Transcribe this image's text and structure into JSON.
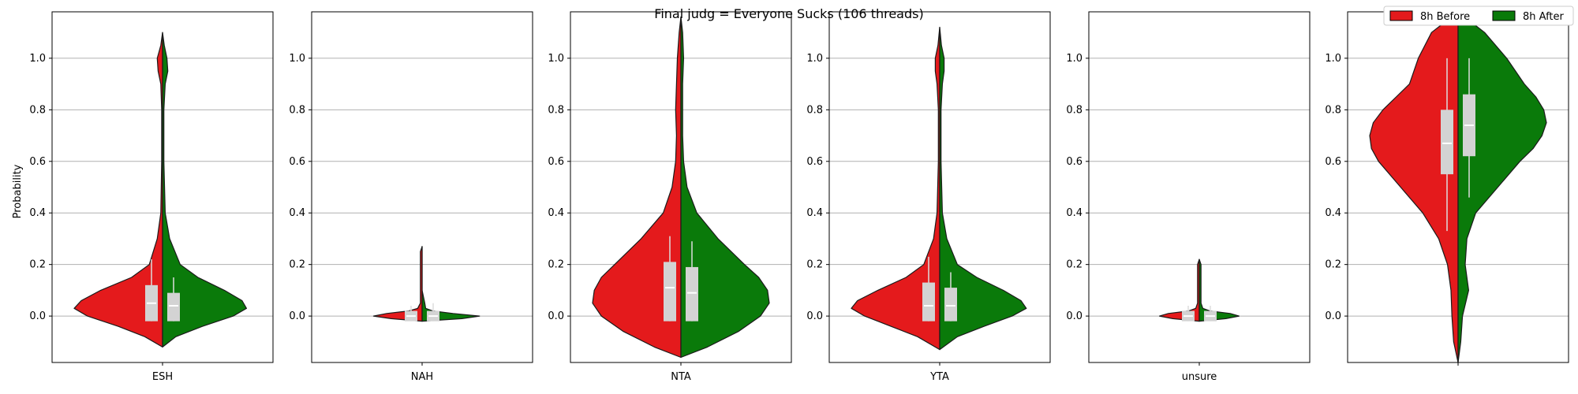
{
  "title": "Final judg = Everyone Sucks (106 threads)",
  "chart_data": {
    "type": "violin",
    "title": "Final judg = Everyone Sucks (106 threads)",
    "ylabel": "Probability",
    "ylim": [
      -0.18,
      1.18
    ],
    "yticks": [
      "0.0",
      "0.2",
      "0.4",
      "0.6",
      "0.8",
      "1.0"
    ],
    "grid": "horizontal",
    "legend": {
      "placement": "top-right",
      "entries": [
        {
          "name": "8h Before",
          "color": "#e41a1c"
        },
        {
          "name": "8h After",
          "color": "#0a7a0a"
        }
      ]
    },
    "panels": [
      {
        "category": "ESH",
        "density_y": [
          -0.12,
          -0.08,
          -0.04,
          0.0,
          0.03,
          0.06,
          0.1,
          0.15,
          0.2,
          0.3,
          0.4,
          0.6,
          0.8,
          0.9,
          0.95,
          1.0,
          1.05,
          1.1
        ],
        "before_width": [
          0.0,
          0.2,
          0.5,
          0.85,
          1.0,
          0.92,
          0.7,
          0.35,
          0.15,
          0.06,
          0.02,
          0.01,
          0.01,
          0.02,
          0.05,
          0.06,
          0.02,
          0.0
        ],
        "after_width": [
          0.0,
          0.15,
          0.45,
          0.8,
          0.95,
          0.9,
          0.7,
          0.4,
          0.2,
          0.08,
          0.03,
          0.015,
          0.015,
          0.03,
          0.06,
          0.05,
          0.02,
          0.0
        ],
        "before_box": {
          "q1": -0.02,
          "median": 0.05,
          "q3": 0.12,
          "whisker_low": -0.02,
          "whisker_high": 0.22
        },
        "after_box": {
          "q1": -0.02,
          "median": 0.04,
          "q3": 0.09,
          "whisker_low": -0.02,
          "whisker_high": 0.15
        }
      },
      {
        "category": "NAH",
        "density_y": [
          -0.02,
          -0.01,
          0.0,
          0.01,
          0.02,
          0.03,
          0.05,
          0.1,
          0.15,
          0.2,
          0.25,
          0.27
        ],
        "before_width": [
          0.0,
          0.35,
          0.55,
          0.4,
          0.15,
          0.05,
          0.02,
          0.02,
          0.02,
          0.02,
          0.02,
          0.0
        ],
        "after_width": [
          0.0,
          0.45,
          0.65,
          0.35,
          0.12,
          0.04,
          0.03,
          0.0,
          0.0,
          0.0,
          0.0,
          0.0
        ],
        "before_box": {
          "q1": -0.02,
          "median": 0.0,
          "q3": 0.02,
          "whisker_low": -0.02,
          "whisker_high": 0.04
        },
        "after_box": {
          "q1": -0.02,
          "median": 0.0,
          "q3": 0.02,
          "whisker_low": -0.02,
          "whisker_high": 0.05
        }
      },
      {
        "category": "NTA",
        "density_y": [
          -0.16,
          -0.12,
          -0.06,
          0.0,
          0.05,
          0.1,
          0.15,
          0.2,
          0.3,
          0.4,
          0.5,
          0.6,
          0.7,
          0.8,
          0.9,
          1.0,
          1.1,
          1.16
        ],
        "before_width": [
          0.0,
          0.3,
          0.65,
          0.9,
          1.0,
          0.98,
          0.9,
          0.75,
          0.45,
          0.2,
          0.1,
          0.06,
          0.05,
          0.06,
          0.05,
          0.04,
          0.02,
          0.0
        ],
        "after_width": [
          0.0,
          0.3,
          0.65,
          0.9,
          1.0,
          0.98,
          0.88,
          0.72,
          0.42,
          0.18,
          0.07,
          0.03,
          0.02,
          0.02,
          0.02,
          0.03,
          0.02,
          0.0
        ],
        "before_box": {
          "q1": -0.02,
          "median": 0.11,
          "q3": 0.21,
          "whisker_low": -0.02,
          "whisker_high": 0.31
        },
        "after_box": {
          "q1": -0.02,
          "median": 0.09,
          "q3": 0.19,
          "whisker_low": -0.02,
          "whisker_high": 0.29
        }
      },
      {
        "category": "YTA",
        "density_y": [
          -0.13,
          -0.08,
          -0.04,
          0.0,
          0.03,
          0.06,
          0.1,
          0.15,
          0.2,
          0.3,
          0.4,
          0.6,
          0.8,
          0.9,
          0.95,
          1.0,
          1.05,
          1.12
        ],
        "before_width": [
          0.0,
          0.25,
          0.55,
          0.85,
          1.0,
          0.93,
          0.7,
          0.38,
          0.18,
          0.07,
          0.03,
          0.015,
          0.015,
          0.03,
          0.05,
          0.05,
          0.02,
          0.0
        ],
        "after_width": [
          0.0,
          0.2,
          0.5,
          0.82,
          0.98,
          0.92,
          0.72,
          0.42,
          0.2,
          0.08,
          0.03,
          0.015,
          0.015,
          0.03,
          0.05,
          0.05,
          0.02,
          0.0
        ],
        "before_box": {
          "q1": -0.02,
          "median": 0.04,
          "q3": 0.13,
          "whisker_low": -0.02,
          "whisker_high": 0.23
        },
        "after_box": {
          "q1": -0.02,
          "median": 0.04,
          "q3": 0.11,
          "whisker_low": -0.02,
          "whisker_high": 0.17
        }
      },
      {
        "category": "unsure",
        "density_y": [
          -0.02,
          -0.01,
          0.0,
          0.01,
          0.02,
          0.03,
          0.05,
          0.1,
          0.15,
          0.2,
          0.22
        ],
        "before_width": [
          0.0,
          0.3,
          0.45,
          0.35,
          0.12,
          0.04,
          0.02,
          0.02,
          0.02,
          0.02,
          0.0
        ],
        "after_width": [
          0.0,
          0.3,
          0.45,
          0.35,
          0.12,
          0.04,
          0.02,
          0.02,
          0.02,
          0.02,
          0.0
        ],
        "before_box": {
          "q1": -0.02,
          "median": 0.0,
          "q3": 0.02,
          "whisker_low": -0.02,
          "whisker_high": 0.04
        },
        "after_box": {
          "q1": -0.02,
          "median": 0.0,
          "q3": 0.02,
          "whisker_low": -0.02,
          "whisker_high": 0.04
        }
      },
      {
        "category": "",
        "density_y": [
          -0.18,
          -0.1,
          0.0,
          0.1,
          0.2,
          0.3,
          0.4,
          0.5,
          0.6,
          0.65,
          0.7,
          0.75,
          0.8,
          0.85,
          0.9,
          1.0,
          1.1,
          1.18
        ],
        "before_width": [
          0.0,
          0.05,
          0.07,
          0.08,
          0.12,
          0.22,
          0.4,
          0.65,
          0.9,
          0.98,
          1.0,
          0.96,
          0.85,
          0.7,
          0.55,
          0.45,
          0.3,
          0.0
        ],
        "after_width": [
          0.0,
          0.03,
          0.05,
          0.12,
          0.08,
          0.1,
          0.2,
          0.45,
          0.7,
          0.85,
          0.95,
          1.0,
          0.97,
          0.88,
          0.75,
          0.55,
          0.3,
          0.0
        ],
        "before_box": {
          "q1": 0.55,
          "median": 0.67,
          "q3": 0.8,
          "whisker_low": 0.33,
          "whisker_high": 1.0
        },
        "after_box": {
          "q1": 0.62,
          "median": 0.74,
          "q3": 0.86,
          "whisker_low": 0.46,
          "whisker_high": 1.0
        }
      }
    ]
  }
}
